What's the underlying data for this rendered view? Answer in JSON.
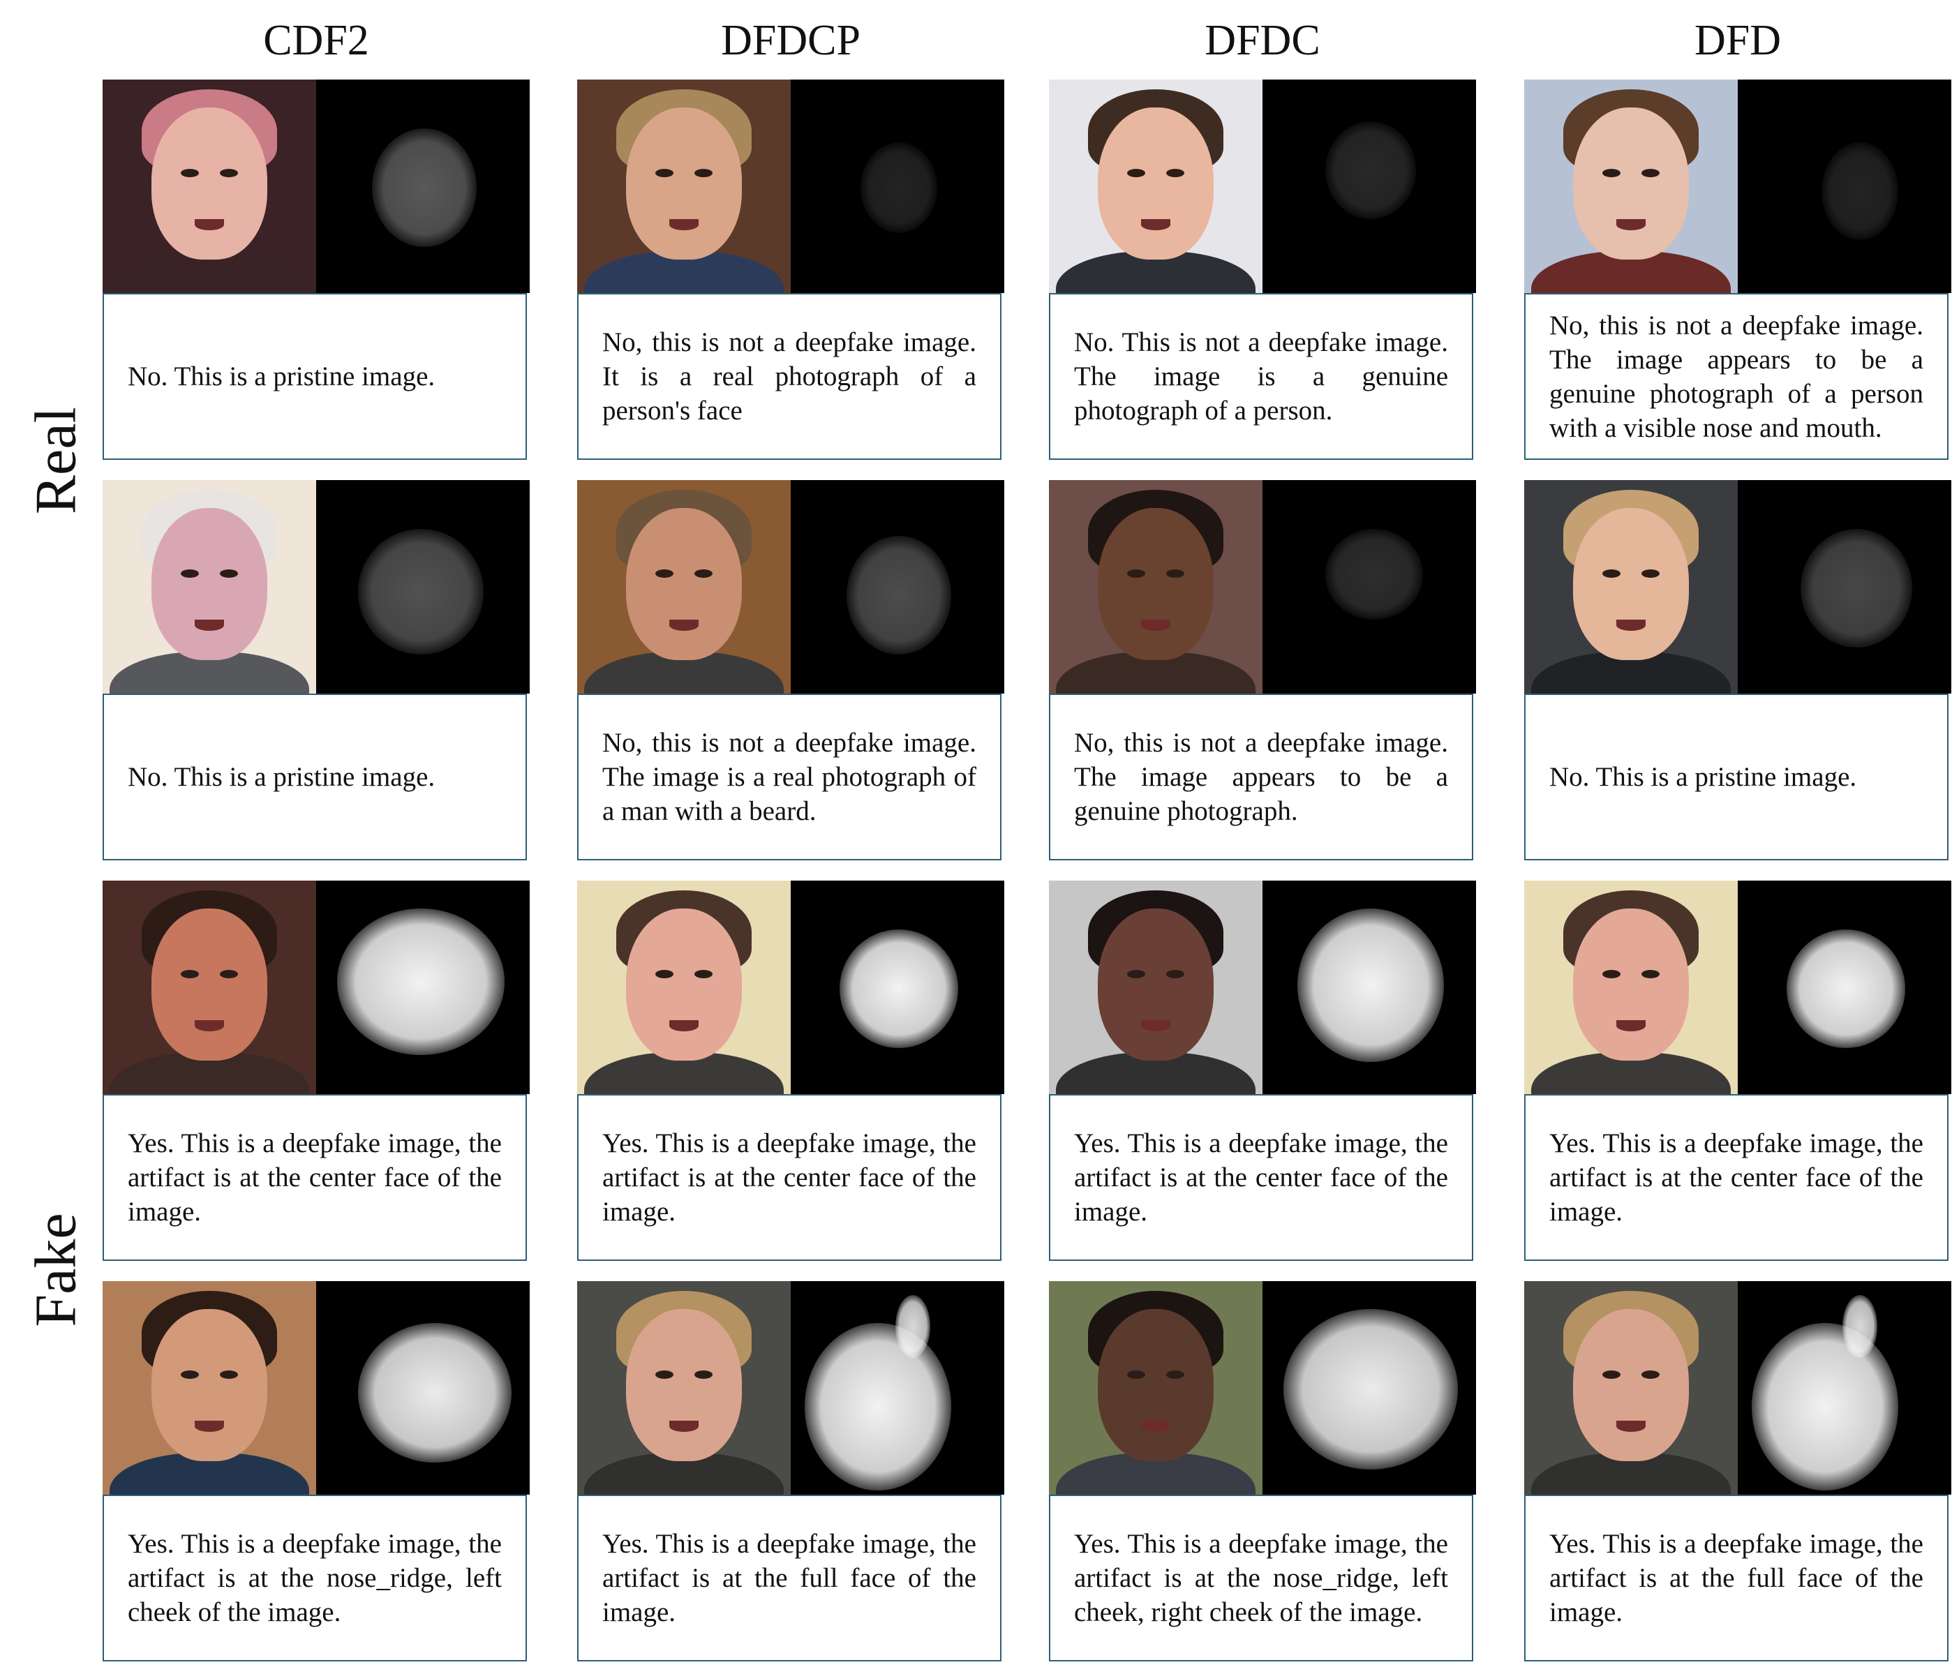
{
  "columns": [
    "CDF2",
    "DFDCP",
    "DFDC",
    "DFD"
  ],
  "row_groups": [
    "Real",
    "Fake"
  ],
  "captions": [
    [
      "No. This is a pristine image.",
      "No, this is not a deepfake image. It is a real photograph of a person's face",
      "No. This is not a deepfake image. The image is a genuine photograph of a person.",
      "No, this is not a deepfake image. The image appears to be a genuine photograph of a person with a visible nose and mouth."
    ],
    [
      "No. This is a pristine image.",
      "No, this is not a deepfake image. The image is a real photograph of a man with a beard.",
      "No, this is not a deepfake image. The image appears to be a genuine photograph.",
      "No. This is a pristine image."
    ],
    [
      "Yes. This is a deepfake image, the artifact is at the center face of the image.",
      "Yes. This is a deepfake image, the artifact is at the center face of the image.",
      "Yes. This is a deepfake image, the artifact is at the center face of the image.",
      "Yes. This is a deepfake image, the artifact is at the center face of the image."
    ],
    [
      "Yes. This is a deepfake image, the artifact is at the nose_ridge, left cheek of the image.",
      "Yes. This is a deepfake image, the artifact is at the full face of the image.",
      "Yes. This is a deepfake image, the artifact is at the nose_ridge, left cheek, right cheek of the image.",
      "Yes. This is a deepfake image, the artifact is at the full face of the image."
    ]
  ],
  "palette": {
    "caption_border": "#2d5f78",
    "heatmap_background": "#000000"
  }
}
